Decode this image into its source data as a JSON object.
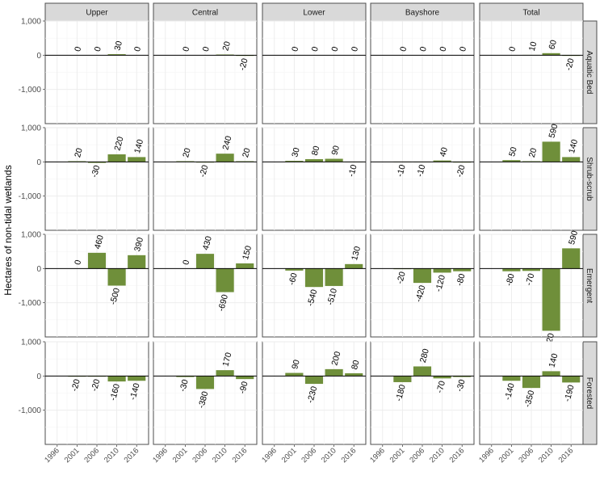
{
  "chart_data": {
    "type": "bar",
    "ylabel": "Hectares of non-tidal wetlands",
    "xlabel": "",
    "ylim": [
      -2000,
      1000
    ],
    "yticks": [
      1000,
      0,
      -1000
    ],
    "ytick_labels": [
      "1,000",
      "0",
      "-1,000"
    ],
    "categories": [
      "1996",
      "2001",
      "2006",
      "2010",
      "2016"
    ],
    "x_tick_labels": [
      "1996",
      "2001",
      "2006",
      "2010",
      "2016"
    ],
    "columns": [
      "Upper",
      "Central",
      "Lower",
      "Bayshore",
      "Total"
    ],
    "rows": [
      "Aquatic Bed",
      "Shrub-scrub",
      "Emergent",
      "Forested"
    ],
    "bar_color": "#6f8f3a",
    "grid": true,
    "values": {
      "Aquatic Bed": {
        "Upper": [
          0,
          0,
          0,
          30,
          0
        ],
        "Central": [
          0,
          0,
          0,
          20,
          -20
        ],
        "Lower": [
          0,
          0,
          0,
          0,
          0
        ],
        "Bayshore": [
          0,
          0,
          0,
          0,
          0
        ],
        "Total": [
          0,
          0,
          10,
          60,
          -20
        ]
      },
      "Shrub-scrub": {
        "Upper": [
          0,
          20,
          -30,
          220,
          140
        ],
        "Central": [
          0,
          20,
          -20,
          240,
          20
        ],
        "Lower": [
          0,
          30,
          80,
          90,
          -10
        ],
        "Bayshore": [
          0,
          -10,
          -10,
          40,
          -20
        ],
        "Total": [
          0,
          50,
          20,
          590,
          140
        ]
      },
      "Emergent": {
        "Upper": [
          0,
          0,
          460,
          -500,
          390
        ],
        "Central": [
          0,
          0,
          430,
          -690,
          150
        ],
        "Lower": [
          0,
          -60,
          -540,
          -510,
          130
        ],
        "Bayshore": [
          0,
          -20,
          -420,
          -120,
          -80
        ],
        "Total": [
          0,
          -80,
          -70,
          -1820,
          590
        ]
      },
      "Forested": {
        "Upper": [
          0,
          -20,
          -20,
          -160,
          -140
        ],
        "Central": [
          0,
          -30,
          -380,
          170,
          -90
        ],
        "Lower": [
          0,
          90,
          -230,
          200,
          80
        ],
        "Bayshore": [
          0,
          -180,
          280,
          -70,
          -30
        ],
        "Total": [
          0,
          -140,
          -350,
          140,
          -190
        ]
      }
    },
    "labels": {
      "Aquatic Bed": {
        "Upper": [
          "",
          "0",
          "0",
          "30",
          "0"
        ],
        "Central": [
          "",
          "0",
          "0",
          "20",
          "-20"
        ],
        "Lower": [
          "",
          "0",
          "0",
          "0",
          "0"
        ],
        "Bayshore": [
          "",
          "0",
          "0",
          "0",
          "0"
        ],
        "Total": [
          "",
          "0",
          "10",
          "60",
          "-20"
        ]
      },
      "Shrub-scrub": {
        "Upper": [
          "",
          "20",
          "-30",
          "220",
          "140"
        ],
        "Central": [
          "",
          "20",
          "-20",
          "240",
          "20"
        ],
        "Lower": [
          "",
          "30",
          "80",
          "90",
          "-10"
        ],
        "Bayshore": [
          "",
          "-10",
          "-10",
          "40",
          "-20"
        ],
        "Total": [
          "",
          "50",
          "20",
          "590",
          "140"
        ]
      },
      "Emergent": {
        "Upper": [
          "",
          "0",
          "460",
          "-500",
          "390"
        ],
        "Central": [
          "",
          "0",
          "430",
          "-690",
          "150"
        ],
        "Lower": [
          "",
          "-60",
          "-540",
          "-510",
          "130"
        ],
        "Bayshore": [
          "",
          "-20",
          "-420",
          "-120",
          "-80"
        ],
        "Total": [
          "",
          "-80",
          "-70",
          "-1,820",
          "590"
        ]
      },
      "Forested": {
        "Upper": [
          "",
          "-20",
          "-20",
          "-160",
          "-140"
        ],
        "Central": [
          "",
          "-30",
          "-380",
          "170",
          "-90"
        ],
        "Lower": [
          "",
          "90",
          "-230",
          "200",
          "80"
        ],
        "Bayshore": [
          "",
          "-180",
          "280",
          "-70",
          "-30"
        ],
        "Total": [
          "",
          "-140",
          "-350",
          "140",
          "-190"
        ]
      }
    }
  }
}
